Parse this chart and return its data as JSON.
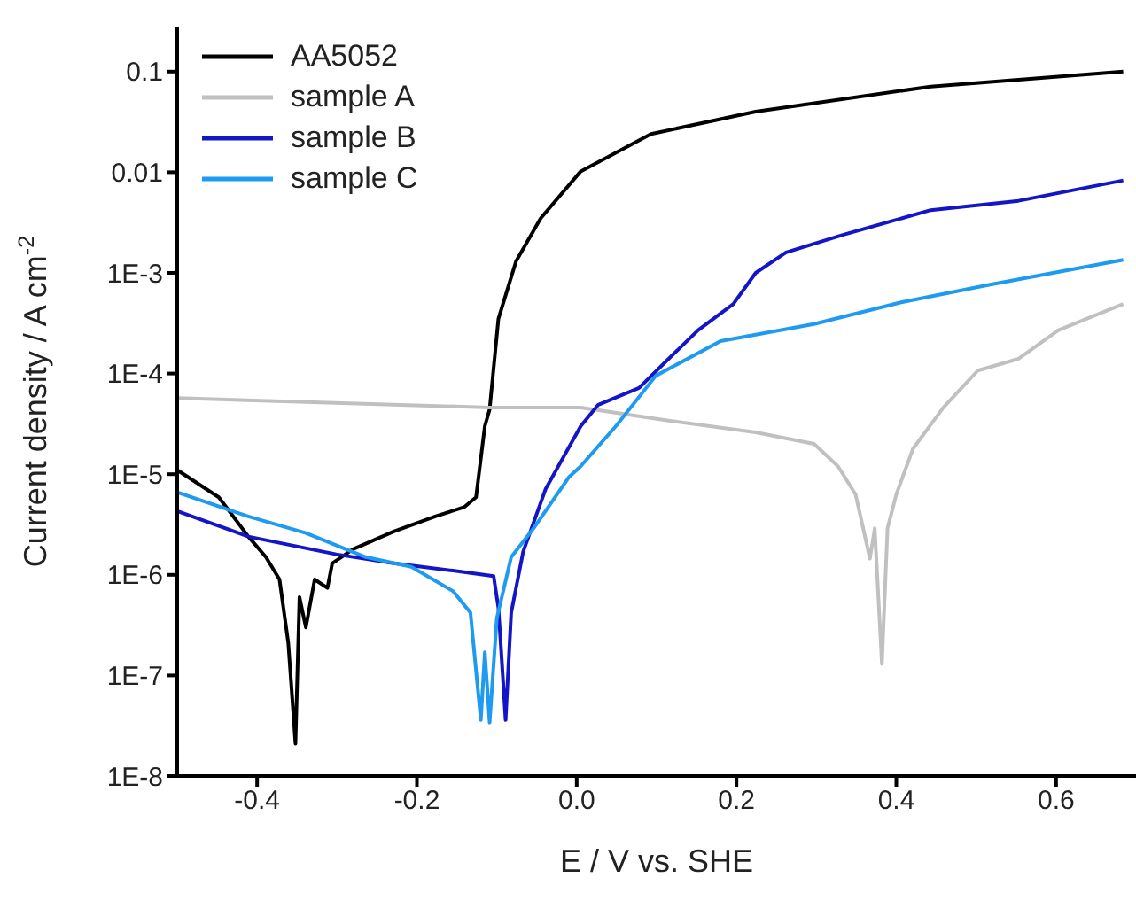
{
  "chart_data": {
    "type": "line",
    "xlabel": "E / V vs. SHE",
    "ylabel": "Current density / A cm$^{-2}$",
    "log": "y",
    "xlim": [
      -0.5,
      0.7
    ],
    "xticks": [
      {
        "value": -0.4,
        "label": "-0.4"
      },
      {
        "value": -0.2,
        "label": "-0.2"
      },
      {
        "value": 0,
        "label": "0.0"
      },
      {
        "value": 0.2,
        "label": "0.2"
      },
      {
        "value": 0.4,
        "label": "0.4"
      },
      {
        "value": 0.6,
        "label": "0.6"
      }
    ],
    "ylim": [
      1e-08,
      0.28
    ],
    "yticks": [
      {
        "value": 1e-08,
        "label": "1E-8"
      },
      {
        "value": 1e-07,
        "label": "1E-7"
      },
      {
        "value": 1e-06,
        "label": "1E-6"
      },
      {
        "value": 1e-05,
        "label": "1E-5"
      },
      {
        "value": 0.0001,
        "label": "1E-4"
      },
      {
        "value": 0.001,
        "label": "1E-3"
      },
      {
        "value": 0.01,
        "label": "0.01"
      },
      {
        "value": 0.1,
        "label": "0.1"
      }
    ],
    "grid": false,
    "legend": "top left",
    "marker": "none",
    "line_style": "solid",
    "series": [
      {
        "name": "AA5052",
        "color": "#000000",
        "x": [
          -0.5,
          -0.448,
          -0.411,
          -0.389,
          -0.372,
          -0.361,
          -0.352,
          -0.347,
          -0.339,
          -0.328,
          -0.312,
          -0.306,
          -0.28,
          -0.229,
          -0.177,
          -0.141,
          -0.126,
          -0.115,
          -0.109,
          -0.098,
          -0.076,
          -0.045,
          0.005,
          0.093,
          0.224,
          0.443,
          0.684
        ],
        "values": [
          1.1e-05,
          5.9e-06,
          2.4e-06,
          1.5e-06,
          9e-07,
          2.1e-07,
          2.1e-08,
          6e-07,
          3e-07,
          9e-07,
          7.4e-07,
          1.3e-06,
          1.8e-06,
          2.7e-06,
          3.8e-06,
          4.7e-06,
          5.9e-06,
          3e-05,
          4.4e-05,
          0.00035,
          0.0013,
          0.0035,
          0.0102,
          0.024,
          0.04,
          0.071,
          0.1
        ]
      },
      {
        "name": "sample A",
        "color": "#c0c0c0",
        "x": [
          -0.5,
          -0.109,
          0.005,
          0.115,
          0.224,
          0.297,
          0.327,
          0.349,
          0.367,
          0.373,
          0.382,
          0.389,
          0.4,
          0.421,
          0.459,
          0.502,
          0.553,
          0.603,
          0.684
        ],
        "values": [
          5.7e-05,
          4.6e-05,
          4.6e-05,
          3.4e-05,
          2.6e-05,
          2e-05,
          1.2e-05,
          6.3e-06,
          1.45e-06,
          2.9e-06,
          1.3e-07,
          2.9e-06,
          6.3e-06,
          1.8e-05,
          4.6e-05,
          0.000107,
          0.00014,
          0.00027,
          0.00049
        ]
      },
      {
        "name": "sample B",
        "color": "#1515c8",
        "x": [
          -0.5,
          -0.411,
          -0.301,
          -0.229,
          -0.155,
          -0.104,
          -0.098,
          -0.089,
          -0.082,
          -0.067,
          -0.039,
          0.005,
          0.027,
          0.078,
          0.115,
          0.152,
          0.196,
          0.224,
          0.262,
          0.334,
          0.443,
          0.553,
          0.684
        ],
        "values": [
          4.3e-06,
          2.4e-06,
          1.6e-06,
          1.3e-06,
          1.1e-06,
          9.7e-07,
          4.7e-07,
          3.6e-08,
          4.2e-07,
          1.7e-06,
          7.1e-06,
          3e-05,
          4.9e-05,
          7.2e-05,
          0.00014,
          0.00027,
          0.00049,
          0.001,
          0.0016,
          0.0024,
          0.0042,
          0.0052,
          0.0083
        ]
      },
      {
        "name": "sample C",
        "color": "#1e9bf0",
        "x": [
          -0.5,
          -0.411,
          -0.339,
          -0.264,
          -0.207,
          -0.155,
          -0.133,
          -0.12,
          -0.115,
          -0.109,
          -0.1,
          -0.082,
          -0.054,
          -0.01,
          0.005,
          0.049,
          0.099,
          0.18,
          0.297,
          0.406,
          0.516,
          0.684
        ],
        "values": [
          6.6e-06,
          3.8e-06,
          2.6e-06,
          1.5e-06,
          1.2e-06,
          6.9e-07,
          4.2e-07,
          3.6e-08,
          1.7e-07,
          3.4e-08,
          3.7e-07,
          1.5e-06,
          2.9e-06,
          9.3e-06,
          1.2e-05,
          3e-05,
          9.5e-05,
          0.00021,
          0.00031,
          0.00051,
          0.00076,
          0.00135
        ]
      }
    ]
  }
}
